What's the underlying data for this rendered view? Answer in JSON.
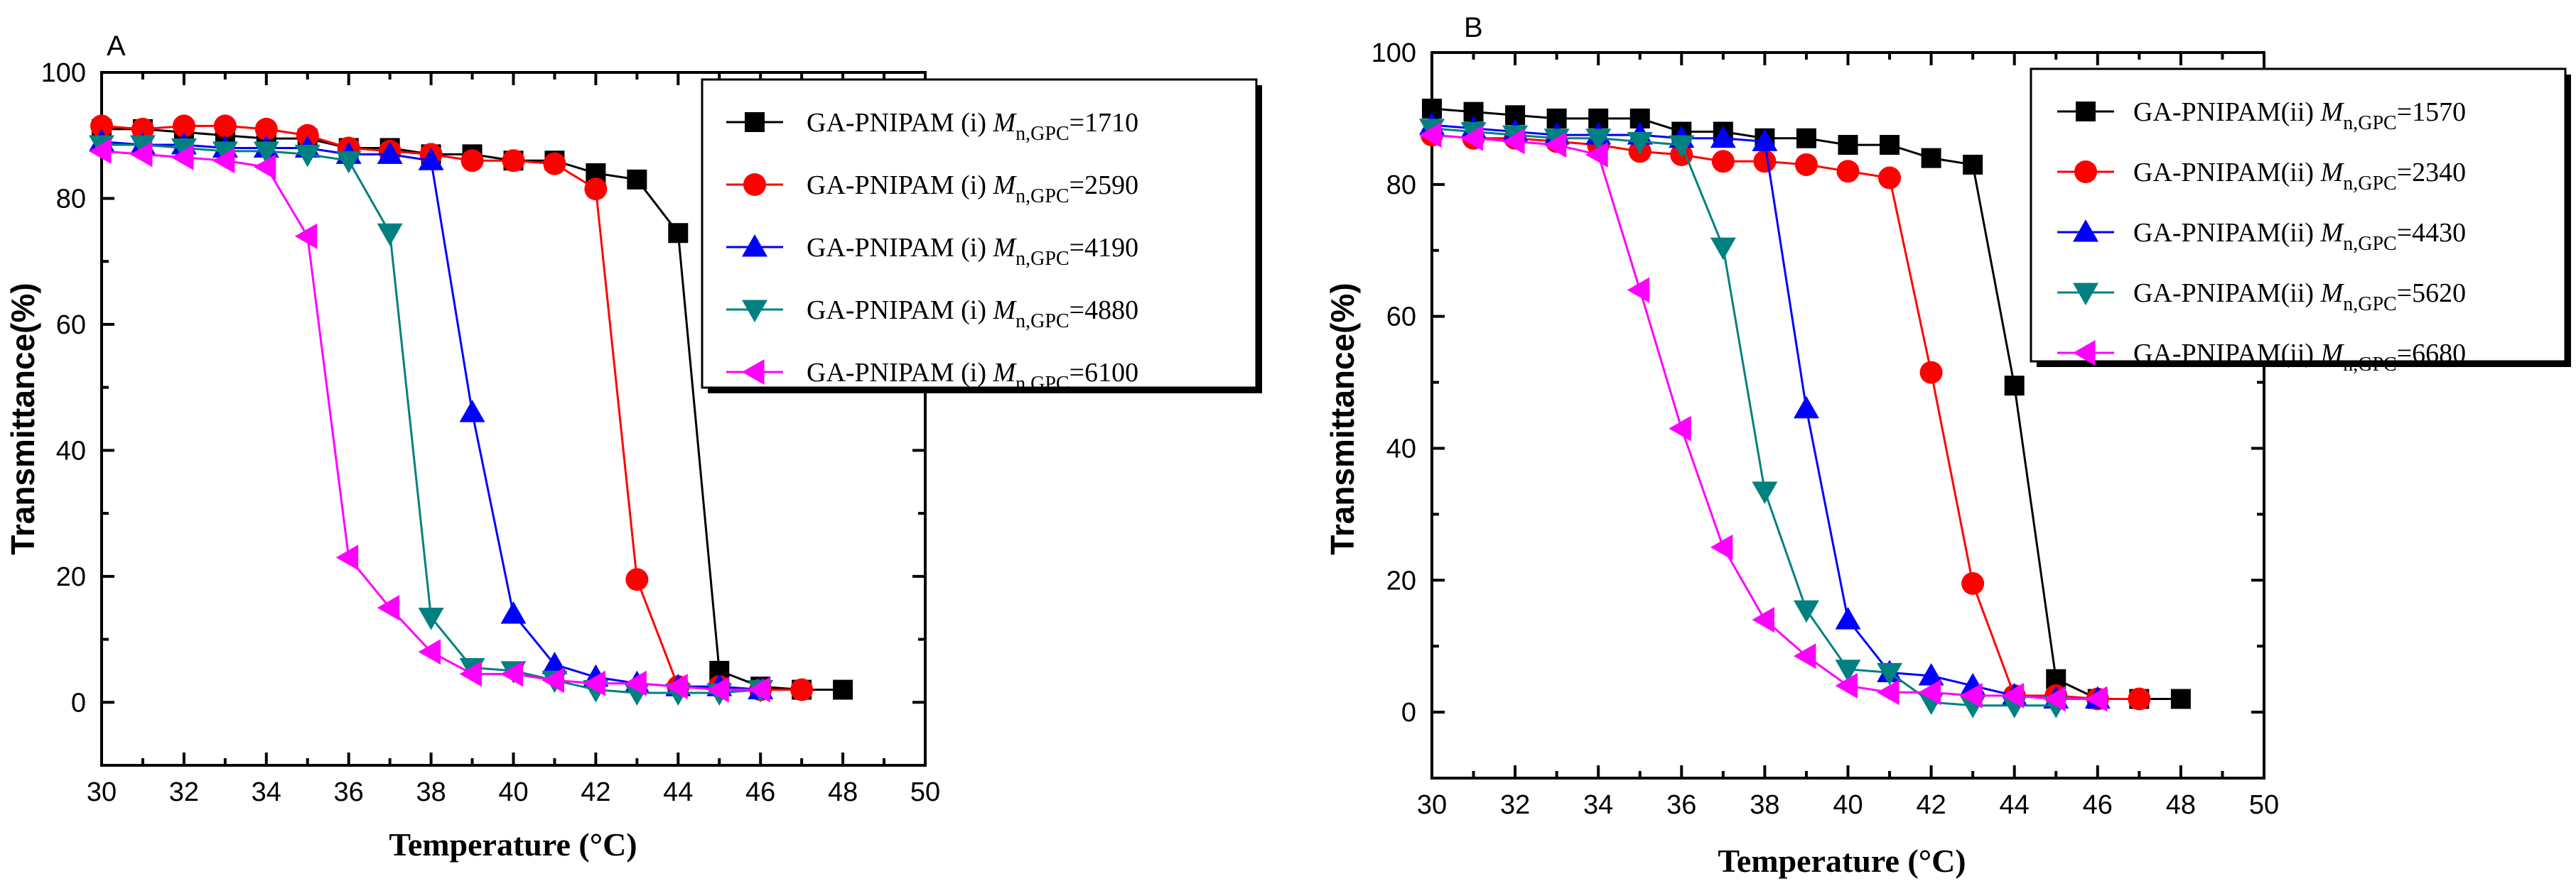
{
  "chart_data": [
    {
      "type": "line",
      "panel": "A",
      "title": "",
      "xlabel": "Temperature (°C)",
      "ylabel": "Transmittance(%)",
      "xlim": [
        30,
        50
      ],
      "ylim": [
        -10,
        100
      ],
      "xticks": [
        "30",
        "32",
        "34",
        "36",
        "38",
        "40",
        "42",
        "44",
        "46",
        "48",
        "50"
      ],
      "yticks": [
        "0",
        "20",
        "40",
        "60",
        "80",
        "100"
      ],
      "legend_position": "top-right",
      "series": [
        {
          "name": "GA-PNIPAM (i)",
          "mn": "1710",
          "color": "#000000",
          "marker": "square",
          "x": [
            30,
            31,
            32,
            33,
            34,
            35,
            36,
            37,
            38,
            39,
            40,
            41,
            42,
            43,
            44,
            45,
            46,
            47,
            48
          ],
          "y": [
            91,
            91,
            90.5,
            90,
            89.5,
            89.5,
            88,
            88,
            87,
            87,
            86,
            86,
            84,
            83,
            74.5,
            5,
            2.5,
            2,
            2
          ]
        },
        {
          "name": "GA-PNIPAM (i)",
          "mn": "2590",
          "color": "#ff0000",
          "marker": "circle",
          "x": [
            30,
            31,
            32,
            33,
            34,
            35,
            36,
            37,
            38,
            39,
            40,
            41,
            42,
            43,
            44,
            45,
            46,
            47
          ],
          "y": [
            91.5,
            91,
            91.5,
            91.5,
            91,
            90,
            88,
            87.5,
            87,
            86,
            86,
            85.5,
            81.5,
            19.5,
            2.5,
            2.5,
            2,
            2
          ]
        },
        {
          "name": "GA-PNIPAM (i)",
          "mn": "4190",
          "color": "#0000ff",
          "marker": "triangle-up",
          "x": [
            30,
            31,
            32,
            33,
            34,
            35,
            36,
            37,
            38,
            39,
            40,
            41,
            42,
            43,
            44,
            45,
            46
          ],
          "y": [
            89,
            88.5,
            88.5,
            88,
            88,
            88,
            87,
            87,
            86,
            46,
            14,
            6,
            4,
            3,
            2.5,
            2.5,
            2
          ]
        },
        {
          "name": "GA-PNIPAM (i)",
          "mn": "4880",
          "color": "#008080",
          "marker": "triangle-down",
          "x": [
            30,
            31,
            32,
            33,
            34,
            35,
            36,
            37,
            38,
            39,
            40,
            41,
            42,
            43,
            44,
            45,
            46
          ],
          "y": [
            88.5,
            88.5,
            88,
            87.5,
            87.5,
            87,
            86,
            74.5,
            13.5,
            5.5,
            5,
            3.5,
            2,
            1.5,
            1.5,
            1.5,
            2
          ]
        },
        {
          "name": "GA-PNIPAM (i)",
          "mn": "6100",
          "color": "#ff00ff",
          "marker": "triangle-left",
          "x": [
            30,
            31,
            32,
            33,
            34,
            35,
            36,
            37,
            38,
            39,
            40,
            41,
            42,
            43,
            44,
            45,
            46
          ],
          "y": [
            87.5,
            87,
            86.5,
            86,
            85,
            74,
            23,
            15,
            8,
            4.5,
            4.5,
            3.5,
            3,
            3,
            2.5,
            2,
            2
          ]
        }
      ]
    },
    {
      "type": "line",
      "panel": "B",
      "title": "",
      "xlabel": "Temperature (°C)",
      "ylabel": "Transmittance(%)",
      "xlim": [
        30,
        50
      ],
      "ylim": [
        -10,
        100
      ],
      "xticks": [
        "30",
        "32",
        "34",
        "36",
        "38",
        "40",
        "42",
        "44",
        "46",
        "48",
        "50"
      ],
      "yticks": [
        "0",
        "20",
        "40",
        "60",
        "80",
        "100"
      ],
      "legend_position": "top-right",
      "series": [
        {
          "name": "GA-PNIPAM(ii)",
          "mn": "1570",
          "color": "#000000",
          "marker": "square",
          "x": [
            30,
            31,
            32,
            33,
            34,
            35,
            36,
            37,
            38,
            39,
            40,
            41,
            42,
            43,
            44,
            45,
            46,
            47,
            48
          ],
          "y": [
            91.5,
            91,
            90.5,
            90,
            90,
            90,
            88,
            88,
            87,
            87,
            86,
            86,
            84,
            83,
            49.5,
            5,
            2,
            2,
            2
          ]
        },
        {
          "name": "GA-PNIPAM(ii)",
          "mn": "2340",
          "color": "#ff0000",
          "marker": "circle",
          "x": [
            30,
            31,
            32,
            33,
            34,
            35,
            36,
            37,
            38,
            39,
            40,
            41,
            42,
            43,
            44,
            45,
            46,
            47
          ],
          "y": [
            87.5,
            87,
            87,
            86.5,
            86,
            85,
            84.5,
            83.5,
            83.5,
            83,
            82,
            81,
            51.5,
            19.5,
            2.5,
            2.5,
            2,
            2
          ]
        },
        {
          "name": "GA-PNIPAM(ii)",
          "mn": "4430",
          "color": "#0000ff",
          "marker": "triangle-up",
          "x": [
            30,
            31,
            32,
            33,
            34,
            35,
            36,
            37,
            38,
            39,
            40,
            41,
            42,
            43,
            44,
            45,
            46
          ],
          "y": [
            89,
            88.5,
            88,
            87.5,
            87.5,
            87.5,
            87,
            87,
            86.5,
            46,
            14,
            6,
            5.5,
            4,
            2.5,
            2,
            2
          ]
        },
        {
          "name": "GA-PNIPAM(ii)",
          "mn": "5620",
          "color": "#008080",
          "marker": "triangle-down",
          "x": [
            30,
            31,
            32,
            33,
            34,
            35,
            36,
            37,
            38,
            39,
            40,
            41,
            42,
            43,
            44,
            45
          ],
          "y": [
            88.5,
            88,
            87.5,
            87,
            87,
            86.5,
            86,
            70.5,
            33.5,
            15.5,
            6.5,
            6,
            1.5,
            1,
            1,
            1
          ]
        },
        {
          "name": "GA-PNIPAM(ii)",
          "mn": "6680",
          "color": "#ff00ff",
          "marker": "triangle-left",
          "x": [
            30,
            31,
            32,
            33,
            34,
            35,
            36,
            37,
            38,
            39,
            40,
            41,
            42,
            43,
            44,
            45,
            46
          ],
          "y": [
            87.5,
            87,
            86.5,
            86,
            84.5,
            64,
            43,
            25,
            14,
            8.5,
            4,
            3,
            3,
            2.5,
            2.5,
            2,
            2
          ]
        }
      ]
    }
  ]
}
